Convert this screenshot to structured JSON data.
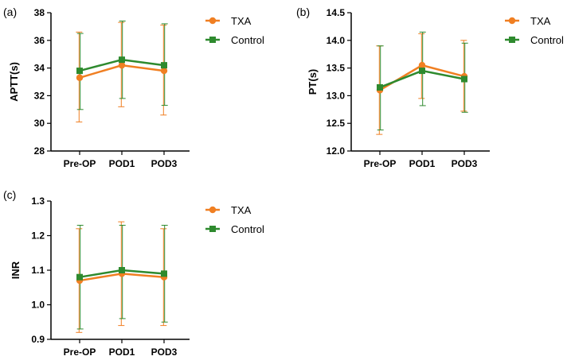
{
  "chart_data": [
    {
      "type": "line",
      "panel_label": "(a)",
      "title": "",
      "xlabel": "",
      "ylabel": "APTT(s)",
      "categories": [
        "Pre-OP",
        "POD1",
        "POD3"
      ],
      "ylim": [
        28,
        38
      ],
      "yticks": [
        28,
        30,
        32,
        34,
        36,
        38
      ],
      "ytick_labels": [
        "28",
        "30",
        "32",
        "34",
        "36",
        "38"
      ],
      "series": [
        {
          "name": "TXA",
          "marker": "circle",
          "color": "#f07f22",
          "values": [
            33.3,
            34.2,
            33.8
          ],
          "err_low": [
            30.1,
            31.2,
            30.6
          ],
          "err_high": [
            36.6,
            37.3,
            37.1
          ]
        },
        {
          "name": "Control",
          "marker": "square",
          "color": "#2e8a2e",
          "values": [
            33.8,
            34.6,
            34.2
          ],
          "err_low": [
            31.0,
            31.8,
            31.3
          ],
          "err_high": [
            36.5,
            37.4,
            37.2
          ]
        }
      ],
      "legend": "top-right"
    },
    {
      "type": "line",
      "panel_label": "(b)",
      "title": "",
      "xlabel": "",
      "ylabel": "PT(s)",
      "categories": [
        "Pre-OP",
        "POD1",
        "POD3"
      ],
      "ylim": [
        12.0,
        14.5
      ],
      "yticks": [
        12.0,
        12.5,
        13.0,
        13.5,
        14.0,
        14.5
      ],
      "ytick_labels": [
        "12.0",
        "12.5",
        "13.0",
        "13.5",
        "14.0",
        "14.5"
      ],
      "series": [
        {
          "name": "TXA",
          "marker": "circle",
          "color": "#f07f22",
          "values": [
            13.1,
            13.55,
            13.35
          ],
          "err_low": [
            12.3,
            12.95,
            12.72
          ],
          "err_high": [
            13.9,
            14.12,
            14.0
          ]
        },
        {
          "name": "Control",
          "marker": "square",
          "color": "#2e8a2e",
          "values": [
            13.15,
            13.45,
            13.3
          ],
          "err_low": [
            12.38,
            12.82,
            12.7
          ],
          "err_high": [
            13.9,
            14.15,
            13.95
          ]
        }
      ],
      "legend": "top-right"
    },
    {
      "type": "line",
      "panel_label": "(c)",
      "title": "",
      "xlabel": "",
      "ylabel": "INR",
      "categories": [
        "Pre-OP",
        "POD1",
        "POD3"
      ],
      "ylim": [
        0.9,
        1.3
      ],
      "yticks": [
        0.9,
        1.0,
        1.1,
        1.2,
        1.3
      ],
      "ytick_labels": [
        "0.9",
        "1.0",
        "1.1",
        "1.2",
        "1.3"
      ],
      "series": [
        {
          "name": "TXA",
          "marker": "circle",
          "color": "#f07f22",
          "values": [
            1.07,
            1.09,
            1.08
          ],
          "err_low": [
            0.92,
            0.94,
            0.94
          ],
          "err_high": [
            1.22,
            1.24,
            1.22
          ]
        },
        {
          "name": "Control",
          "marker": "square",
          "color": "#2e8a2e",
          "values": [
            1.08,
            1.1,
            1.09
          ],
          "err_low": [
            0.93,
            0.96,
            0.95
          ],
          "err_high": [
            1.23,
            1.23,
            1.23
          ]
        }
      ],
      "legend": "right"
    }
  ]
}
